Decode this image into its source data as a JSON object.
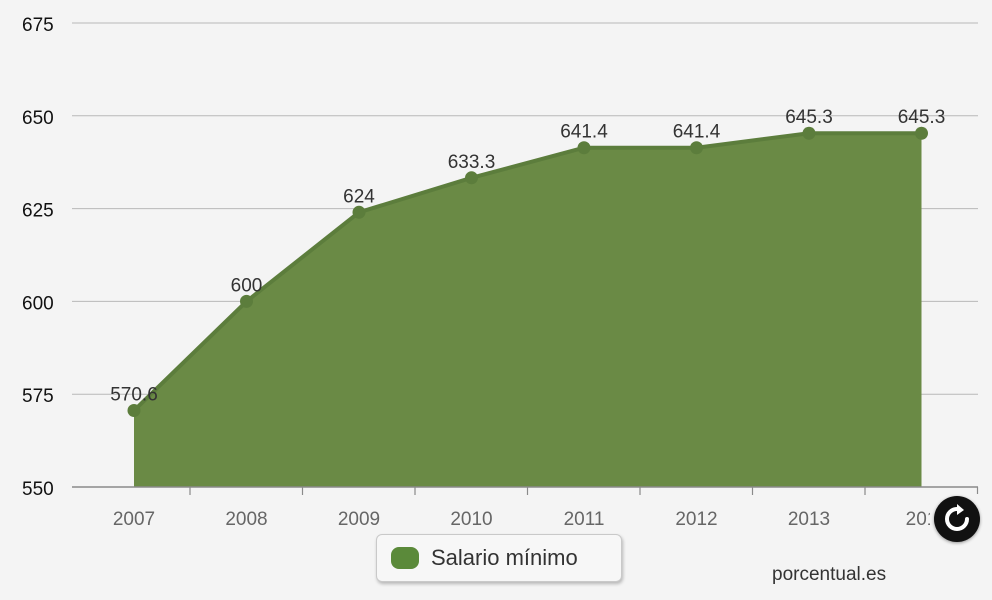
{
  "chart_data": {
    "type": "area",
    "categories": [
      "2007",
      "2008",
      "2009",
      "2010",
      "2011",
      "2012",
      "2013",
      "2014"
    ],
    "category_labels_shown": [
      "2007",
      "2008",
      "2009",
      "2010",
      "2011",
      "2012",
      "2013",
      "201"
    ],
    "series": [
      {
        "name": "Salario mínimo",
        "values": [
          570.6,
          600,
          624,
          633.3,
          641.4,
          641.4,
          645.3,
          645.3
        ],
        "value_labels": [
          "570.6",
          "600",
          "624",
          "633.3",
          "641.4",
          "641.4",
          "645.3",
          "645.3"
        ],
        "color": "#6f8f4e",
        "fill_color": "#6a8a45"
      }
    ],
    "ylim": [
      550,
      675
    ],
    "yticks": [
      550,
      575,
      600,
      625,
      650,
      675
    ],
    "ytick_labels": [
      "550",
      "575",
      "600",
      "625",
      "650",
      "675"
    ],
    "grid": true,
    "legend_position": "bottom",
    "title": "",
    "xlabel": "",
    "ylabel": ""
  },
  "legend": {
    "label": "Salario mínimo",
    "swatch_color": "#5b8a3a"
  },
  "credit": {
    "text": "porcentual.es"
  },
  "controls": {
    "refresh_icon": "refresh-icon"
  }
}
